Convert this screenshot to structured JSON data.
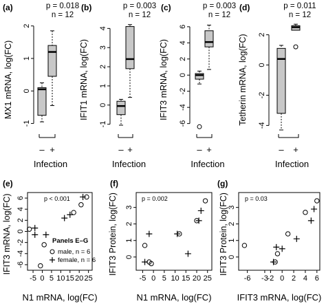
{
  "figure": {
    "top_panels": [
      {
        "letter": "(a)",
        "p_text": "p = 0.018",
        "n_text": "n = 12",
        "ylabel": "MX1 mRNA, log(FC)",
        "xlabel": "Infection",
        "group_minus": "–",
        "group_plus": "+"
      },
      {
        "letter": "(b)",
        "p_text": "p = 0.003",
        "n_text": "n = 12",
        "ylabel": "IFIT1 mRNA, log(FC)",
        "xlabel": "Infection",
        "group_minus": "–",
        "group_plus": "+"
      },
      {
        "letter": "(c)",
        "p_text": "p = 0.003",
        "n_text": "n = 12",
        "ylabel": "IFIT3 mRNA, log(FC)",
        "xlabel": "Infection",
        "group_minus": "–",
        "group_plus": "+"
      },
      {
        "letter": "(d)",
        "p_text": "p = 0.011",
        "n_text": "n = 12",
        "ylabel": "Tetherin mRNA, log(FC)",
        "xlabel": "Infection",
        "group_minus": "–",
        "group_plus": "+"
      }
    ],
    "bottom_panels": [
      {
        "letter": "(e)",
        "p_text": "p < 0.001",
        "ylabel": "IFIT3 mRNA, log(FC)",
        "xlabel": "N1 mRNA, log(FC)"
      },
      {
        "letter": "(f)",
        "p_text": "p = 0.002",
        "ylabel": "IFIT3 Protein, log(FC)",
        "xlabel": "N1 mRNA, log(FC)"
      },
      {
        "letter": "(g)",
        "p_text": "p = 0.03",
        "ylabel": "IFIT3 Protein, log(FC)",
        "xlabel": "IFIT3 mRNA, log(FC)"
      }
    ],
    "legend": {
      "title": "Panels E–G",
      "items": [
        {
          "symbol": "circle",
          "label": "male, n = 6"
        },
        {
          "symbol": "plus",
          "label": "female, n = 6"
        }
      ]
    }
  },
  "chart_data": [
    {
      "type": "box",
      "panel": "a",
      "ylim": [
        -1.2,
        2.1
      ],
      "yticks": [
        -1,
        0,
        1,
        2
      ],
      "groups": [
        {
          "name": "–",
          "whisker_low": -0.95,
          "q1": -0.75,
          "median": 0.05,
          "q3": 0.1,
          "whisker_high": 0.25,
          "outliers": []
        },
        {
          "name": "+",
          "whisker_low": -0.45,
          "q1": 0.45,
          "median": 1.2,
          "q3": 1.4,
          "whisker_high": 1.85,
          "outliers": []
        }
      ]
    },
    {
      "type": "box",
      "panel": "b",
      "ylim": [
        -1.3,
        4.3
      ],
      "yticks": [
        -1,
        0,
        1,
        2,
        3,
        4
      ],
      "groups": [
        {
          "name": "–",
          "whisker_low": -1.05,
          "q1": -0.5,
          "median": -0.05,
          "q3": 0.2,
          "whisker_high": 0.3,
          "outliers": []
        },
        {
          "name": "+",
          "whisker_low": 0.4,
          "q1": 1.9,
          "median": 2.4,
          "q3": 4.1,
          "whisker_high": 4.2,
          "outliers": []
        }
      ]
    },
    {
      "type": "box",
      "panel": "c",
      "ylim": [
        -6.8,
        6.5
      ],
      "yticks": [
        -6,
        -4,
        -2,
        0,
        2,
        4,
        6
      ],
      "groups": [
        {
          "name": "–",
          "whisker_low": -1.1,
          "q1": -0.5,
          "median": 0.0,
          "q3": 0.2,
          "whisker_high": 0.5,
          "outliers": [
            -6.4
          ]
        },
        {
          "name": "+",
          "whisker_low": 0.7,
          "q1": 3.5,
          "median": 4.1,
          "q3": 5.5,
          "whisker_high": 6.2,
          "outliers": []
        }
      ]
    },
    {
      "type": "box",
      "panel": "d",
      "ylim": [
        -4.3,
        2.8
      ],
      "yticks": [
        -4,
        -2,
        0,
        2
      ],
      "groups": [
        {
          "name": "–",
          "whisker_low": -4.3,
          "q1": -3.2,
          "median": 0.4,
          "q3": 1.1,
          "whisker_high": 1.3,
          "outliers": []
        },
        {
          "name": "+",
          "whisker_low": 2.3,
          "q1": 2.3,
          "median": 2.5,
          "q3": 2.6,
          "whisker_high": 2.7,
          "outliers": [
            1.2
          ]
        }
      ]
    },
    {
      "type": "scatter",
      "panel": "e",
      "xlim": [
        -8,
        27
      ],
      "ylim": [
        -7,
        7
      ],
      "xticks": [
        -5,
        0,
        5,
        10,
        15,
        20,
        25
      ],
      "yticks": [
        -6,
        -4,
        -2,
        0,
        2,
        4,
        6
      ],
      "series": [
        {
          "name": "male, n = 6",
          "marker": "circle",
          "points": [
            [
              -7,
              0.4
            ],
            [
              -1,
              -6.2
            ],
            [
              1,
              -2.4
            ],
            [
              17,
              3.4
            ],
            [
              21,
              4.8
            ],
            [
              24,
              6.2
            ]
          ]
        },
        {
          "name": "female, n = 6",
          "marker": "plus",
          "points": [
            [
              -4,
              0.6
            ],
            [
              -4,
              -0.6
            ],
            [
              2,
              -0.6
            ],
            [
              12,
              2.4
            ],
            [
              15,
              3.0
            ],
            [
              22,
              6.2
            ]
          ]
        }
      ]
    },
    {
      "type": "scatter",
      "panel": "f",
      "xlim": [
        -8,
        27
      ],
      "ylim": [
        -0.8,
        3.9
      ],
      "xticks": [
        -5,
        0,
        5,
        10,
        15,
        20,
        25
      ],
      "yticks": [
        0,
        1,
        2,
        3
      ],
      "series": [
        {
          "name": "male, n = 6",
          "marker": "circle",
          "points": [
            [
              -4,
              0.7
            ],
            [
              -2,
              -0.3
            ],
            [
              -1,
              -0.4
            ],
            [
              12,
              1.4
            ],
            [
              20,
              2.2
            ],
            [
              24,
              3.4
            ]
          ]
        },
        {
          "name": "female, n = 6",
          "marker": "plus",
          "points": [
            [
              -4,
              -0.3
            ],
            [
              -2,
              1.4
            ],
            [
              11,
              1.4
            ],
            [
              16,
              0.2
            ],
            [
              21,
              2.2
            ],
            [
              22,
              2.8
            ]
          ]
        }
      ]
    },
    {
      "type": "scatter",
      "panel": "g",
      "xlim": [
        -7.5,
        6.5
      ],
      "ylim": [
        -0.8,
        3.9
      ],
      "xticks": [
        -6,
        -3,
        -2,
        0,
        2,
        4,
        6
      ],
      "yticks": [
        0,
        1,
        2,
        3
      ],
      "series": [
        {
          "name": "male, n = 6",
          "marker": "circle",
          "points": [
            [
              -6.5,
              0.7
            ],
            [
              -1.2,
              -0.3
            ],
            [
              -0.8,
              0.2
            ],
            [
              1,
              1.4
            ],
            [
              4,
              2.7
            ],
            [
              6,
              3.4
            ]
          ]
        },
        {
          "name": "female, n = 6",
          "marker": "plus",
          "points": [
            [
              -1.5,
              -0.3
            ],
            [
              -1,
              0.6
            ],
            [
              0,
              0.5
            ],
            [
              2.5,
              1.1
            ],
            [
              5,
              2.2
            ],
            [
              5.5,
              2.9
            ]
          ]
        }
      ]
    }
  ]
}
